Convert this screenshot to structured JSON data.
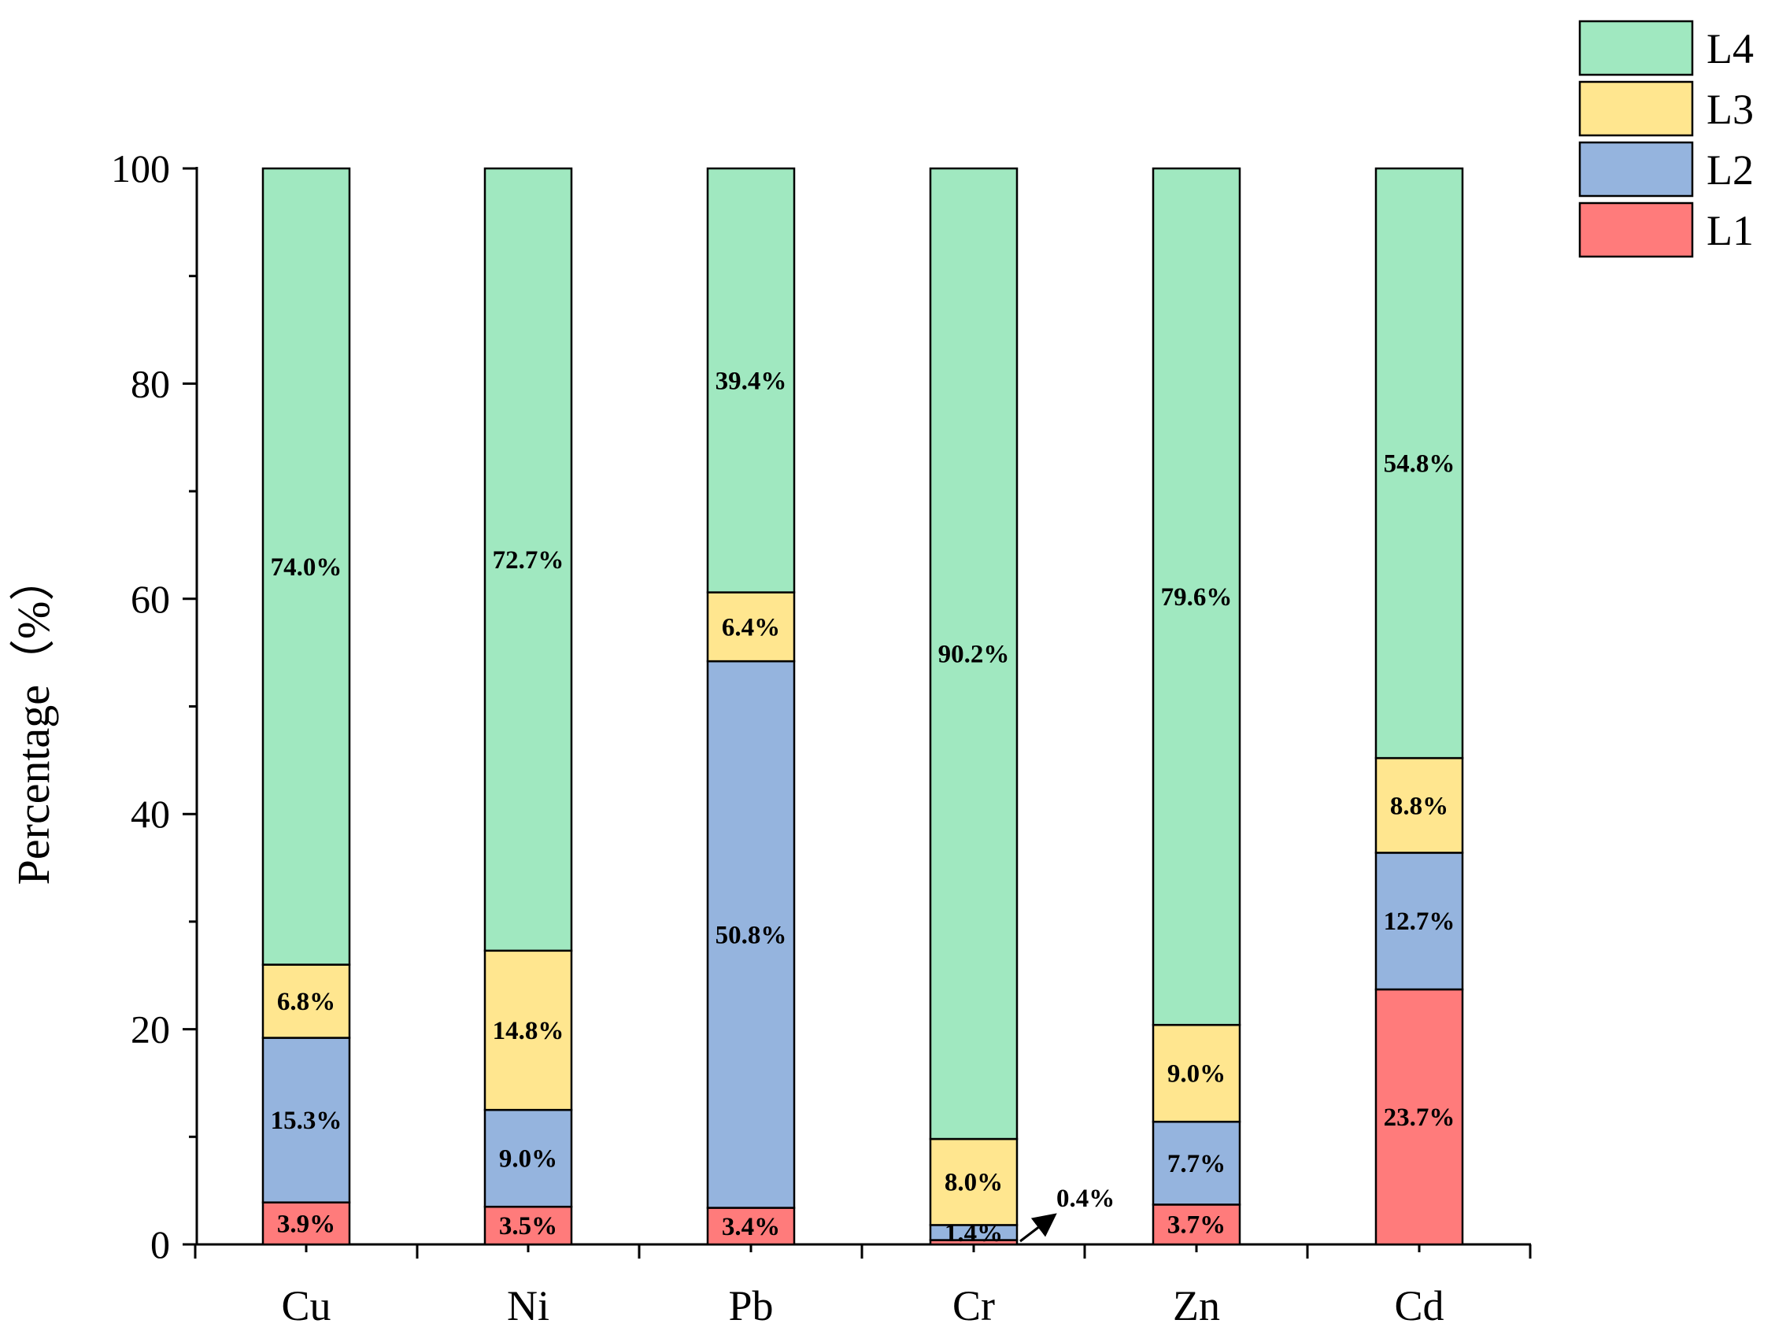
{
  "chart_data": {
    "type": "bar",
    "stacked": true,
    "categories": [
      "Cu",
      "Ni",
      "Pb",
      "Cr",
      "Zn",
      "Cd"
    ],
    "series": [
      {
        "name": "L1",
        "color": "#FF7B7B",
        "values": [
          3.9,
          3.5,
          3.4,
          0.4,
          3.7,
          23.7
        ],
        "labels": [
          "3.9%",
          "3.5%",
          "3.4%",
          "0.4%",
          "3.7%",
          "23.7%"
        ]
      },
      {
        "name": "L2",
        "color": "#95B4DE",
        "values": [
          15.3,
          9.0,
          50.8,
          1.4,
          7.7,
          12.7
        ],
        "labels": [
          "15.3%",
          "9.0%",
          "50.8%",
          "1.4%",
          "7.7%",
          "12.7%"
        ]
      },
      {
        "name": "L3",
        "color": "#FFE68F",
        "values": [
          6.8,
          14.8,
          6.4,
          8.0,
          9.0,
          8.8
        ],
        "labels": [
          "6.8%",
          "14.8%",
          "6.4%",
          "8.0%",
          "9.0%",
          "8.8%"
        ]
      },
      {
        "name": "L4",
        "color": "#A0E8C0",
        "values": [
          74.0,
          72.7,
          39.4,
          90.2,
          79.6,
          54.8
        ],
        "labels": [
          "74.0%",
          "72.7%",
          "39.4%",
          "90.2%",
          "79.6%",
          "54.8%"
        ]
      }
    ],
    "ylabel": "Percentage（%）",
    "xlabel": "",
    "ylim": [
      0,
      100
    ],
    "yticks": [
      "0",
      "20",
      "40",
      "60",
      "80",
      "100"
    ],
    "grid": false,
    "legend_position": "top-right",
    "legend_order": [
      "L4",
      "L3",
      "L2",
      "L1"
    ],
    "annotations": [
      {
        "text": "0.4%",
        "category": "Cr",
        "series": "L1",
        "arrow": true
      }
    ]
  }
}
